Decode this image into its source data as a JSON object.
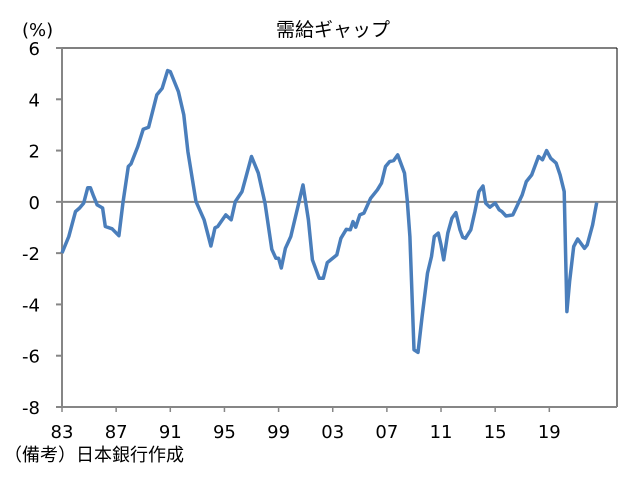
{
  "chart_data": {
    "type": "line",
    "title": "需給ギャップ",
    "ylabel": "(%)",
    "xlabel": "",
    "note": "（備考）日本銀行作成",
    "ylim": [
      -8,
      6
    ],
    "yticks": [
      6,
      4,
      2,
      0,
      -2,
      -4,
      -6,
      -8
    ],
    "xlim": [
      1983,
      2024
    ],
    "xticks": [
      {
        "year": 1983,
        "label": "83"
      },
      {
        "year": 1987,
        "label": "87"
      },
      {
        "year": 1991,
        "label": "91"
      },
      {
        "year": 1995,
        "label": "95"
      },
      {
        "year": 1999,
        "label": "99"
      },
      {
        "year": 2003,
        "label": "03"
      },
      {
        "year": 2007,
        "label": "07"
      },
      {
        "year": 2011,
        "label": "11"
      },
      {
        "year": 2015,
        "label": "15"
      },
      {
        "year": 2019,
        "label": "19"
      }
    ],
    "grid": false,
    "series": [
      {
        "name": "需給ギャップ",
        "color": "#4a7ebb",
        "points": [
          [
            1983.0,
            -2.0
          ],
          [
            1983.5,
            -1.35
          ],
          [
            1984.0,
            -0.38
          ],
          [
            1984.3,
            -0.24
          ],
          [
            1984.6,
            -0.05
          ],
          [
            1984.9,
            0.55
          ],
          [
            1985.1,
            0.55
          ],
          [
            1985.3,
            0.27
          ],
          [
            1985.6,
            -0.12
          ],
          [
            1986.0,
            -0.24
          ],
          [
            1986.2,
            -0.96
          ],
          [
            1986.7,
            -1.05
          ],
          [
            1987.2,
            -1.32
          ],
          [
            1987.5,
            -0.05
          ],
          [
            1987.9,
            1.38
          ],
          [
            1988.1,
            1.48
          ],
          [
            1988.6,
            2.16
          ],
          [
            1989.0,
            2.83
          ],
          [
            1989.4,
            2.91
          ],
          [
            1990.0,
            4.17
          ],
          [
            1990.4,
            4.43
          ],
          [
            1990.8,
            5.12
          ],
          [
            1991.0,
            5.08
          ],
          [
            1991.6,
            4.3
          ],
          [
            1992.0,
            3.39
          ],
          [
            1992.3,
            1.96
          ],
          [
            1992.9,
            0.01
          ],
          [
            1993.5,
            -0.7
          ],
          [
            1994.0,
            -1.72
          ],
          [
            1994.3,
            -1.01
          ],
          [
            1994.5,
            -0.96
          ],
          [
            1995.1,
            -0.51
          ],
          [
            1995.5,
            -0.7
          ],
          [
            1995.8,
            0.01
          ],
          [
            1996.3,
            0.4
          ],
          [
            1996.6,
            0.99
          ],
          [
            1997.0,
            1.77
          ],
          [
            1997.5,
            1.12
          ],
          [
            1998.0,
            -0.05
          ],
          [
            1998.5,
            -1.85
          ],
          [
            1998.8,
            -2.2
          ],
          [
            1999.0,
            -2.2
          ],
          [
            1999.2,
            -2.58
          ],
          [
            1999.5,
            -1.81
          ],
          [
            1999.9,
            -1.35
          ],
          [
            2000.4,
            -0.25
          ],
          [
            2000.8,
            0.66
          ],
          [
            2001.2,
            -0.7
          ],
          [
            2001.5,
            -2.26
          ],
          [
            2002.0,
            -2.98
          ],
          [
            2002.3,
            -2.98
          ],
          [
            2002.6,
            -2.37
          ],
          [
            2003.3,
            -2.07
          ],
          [
            2003.6,
            -1.42
          ],
          [
            2004.0,
            -1.07
          ],
          [
            2004.3,
            -1.09
          ],
          [
            2004.5,
            -0.77
          ],
          [
            2004.7,
            -0.99
          ],
          [
            2005.0,
            -0.51
          ],
          [
            2005.3,
            -0.44
          ],
          [
            2005.8,
            0.14
          ],
          [
            2006.3,
            0.47
          ],
          [
            2006.6,
            0.73
          ],
          [
            2006.9,
            1.38
          ],
          [
            2007.2,
            1.57
          ],
          [
            2007.5,
            1.61
          ],
          [
            2007.8,
            1.83
          ],
          [
            2008.3,
            1.12
          ],
          [
            2008.5,
            0.08
          ],
          [
            2008.7,
            -1.35
          ],
          [
            2009.0,
            -5.77
          ],
          [
            2009.3,
            -5.87
          ],
          [
            2009.6,
            -4.47
          ],
          [
            2010.0,
            -2.78
          ],
          [
            2010.3,
            -2.13
          ],
          [
            2010.5,
            -1.35
          ],
          [
            2010.8,
            -1.22
          ],
          [
            2011.0,
            -1.68
          ],
          [
            2011.2,
            -2.26
          ],
          [
            2011.5,
            -1.22
          ],
          [
            2011.8,
            -0.64
          ],
          [
            2012.1,
            -0.42
          ],
          [
            2012.4,
            -1.09
          ],
          [
            2012.6,
            -1.38
          ],
          [
            2012.8,
            -1.42
          ],
          [
            2013.2,
            -1.09
          ],
          [
            2013.5,
            -0.38
          ],
          [
            2013.8,
            0.4
          ],
          [
            2014.1,
            0.62
          ],
          [
            2014.3,
            -0.05
          ],
          [
            2014.6,
            -0.21
          ],
          [
            2015.0,
            -0.05
          ],
          [
            2015.3,
            -0.31
          ],
          [
            2015.5,
            -0.38
          ],
          [
            2015.8,
            -0.55
          ],
          [
            2016.3,
            -0.51
          ],
          [
            2016.6,
            -0.18
          ],
          [
            2017.0,
            0.27
          ],
          [
            2017.3,
            0.79
          ],
          [
            2017.7,
            1.05
          ],
          [
            2018.2,
            1.77
          ],
          [
            2018.5,
            1.64
          ],
          [
            2018.8,
            2.0
          ],
          [
            2019.1,
            1.7
          ],
          [
            2019.5,
            1.51
          ],
          [
            2019.8,
            1.05
          ],
          [
            2020.1,
            0.4
          ],
          [
            2020.3,
            -4.28
          ],
          [
            2020.5,
            -3.11
          ],
          [
            2020.8,
            -1.74
          ],
          [
            2021.1,
            -1.45
          ],
          [
            2021.6,
            -1.81
          ],
          [
            2021.8,
            -1.68
          ],
          [
            2022.2,
            -0.9
          ],
          [
            2022.5,
            -0.03
          ]
        ]
      }
    ]
  }
}
